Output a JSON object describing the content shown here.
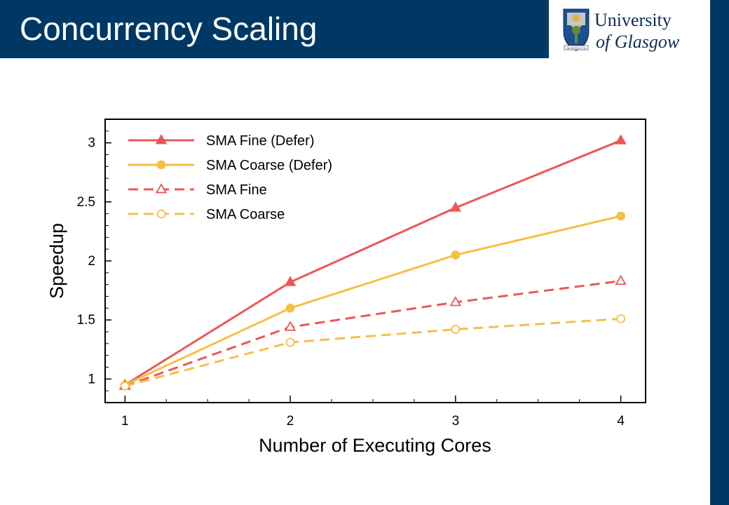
{
  "slide": {
    "title": "Concurrency Scaling",
    "logo": {
      "line1": "University",
      "line2": "of Glasgow",
      "motto": "VIA VERITAS VITA"
    }
  },
  "colors": {
    "brand": "#003865",
    "red": "#EB5757",
    "yellow": "#F7BF47"
  },
  "chart_data": {
    "type": "line",
    "x": [
      1,
      2,
      3,
      4
    ],
    "xlabel": "Number of Executing Cores",
    "ylabel": "Speedup",
    "xlim": [
      0.88,
      4.15
    ],
    "ylim": [
      0.8,
      3.2
    ],
    "x_ticks": [
      "1",
      "2",
      "3",
      "4"
    ],
    "y_ticks": [
      "1",
      "1.5",
      "2",
      "2.5",
      "3"
    ],
    "grid": false,
    "legend_position": "top-left",
    "series": [
      {
        "name": "SMA Fine (Defer)",
        "values": [
          0.95,
          1.82,
          2.45,
          3.02
        ],
        "color": "#EB5757",
        "dash": "solid",
        "marker": "triangle",
        "filled": true
      },
      {
        "name": "SMA Coarse (Defer)",
        "values": [
          0.95,
          1.6,
          2.05,
          2.38
        ],
        "color": "#F7BF47",
        "dash": "solid",
        "marker": "circle",
        "filled": true
      },
      {
        "name": "SMA Fine",
        "values": [
          0.94,
          1.44,
          1.65,
          1.83
        ],
        "color": "#EB5757",
        "dash": "dashed",
        "marker": "triangle",
        "filled": false
      },
      {
        "name": "SMA Coarse",
        "values": [
          0.94,
          1.31,
          1.42,
          1.51
        ],
        "color": "#F7BF47",
        "dash": "dashed",
        "marker": "circle",
        "filled": false
      }
    ]
  }
}
